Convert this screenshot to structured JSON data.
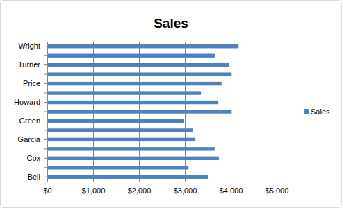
{
  "chart_data": {
    "type": "bar",
    "title": "Sales",
    "orientation": "horizontal",
    "categories": [
      "Bell",
      null,
      "Cox",
      null,
      "Garcia",
      null,
      "Green",
      null,
      "Howard",
      null,
      "Price",
      null,
      "Turner",
      null,
      "Wright"
    ],
    "series": [
      {
        "name": "Sales",
        "color": "#4f81bd",
        "values": [
          3500,
          3080,
          3740,
          3650,
          3230,
          3180,
          2970,
          4020,
          3730,
          3350,
          3800,
          4020,
          3970,
          3650,
          4170
        ]
      }
    ],
    "xlim": [
      0,
      5000
    ],
    "xticks": [
      {
        "value": 0,
        "label": "$0"
      },
      {
        "value": 1000,
        "label": "$1,000"
      },
      {
        "value": 2000,
        "label": "$2,000"
      },
      {
        "value": 3000,
        "label": "$3,000"
      },
      {
        "value": 4000,
        "label": "$4,000"
      },
      {
        "value": 5000,
        "label": "$5,000"
      }
    ],
    "grid": true,
    "legend": "right"
  }
}
